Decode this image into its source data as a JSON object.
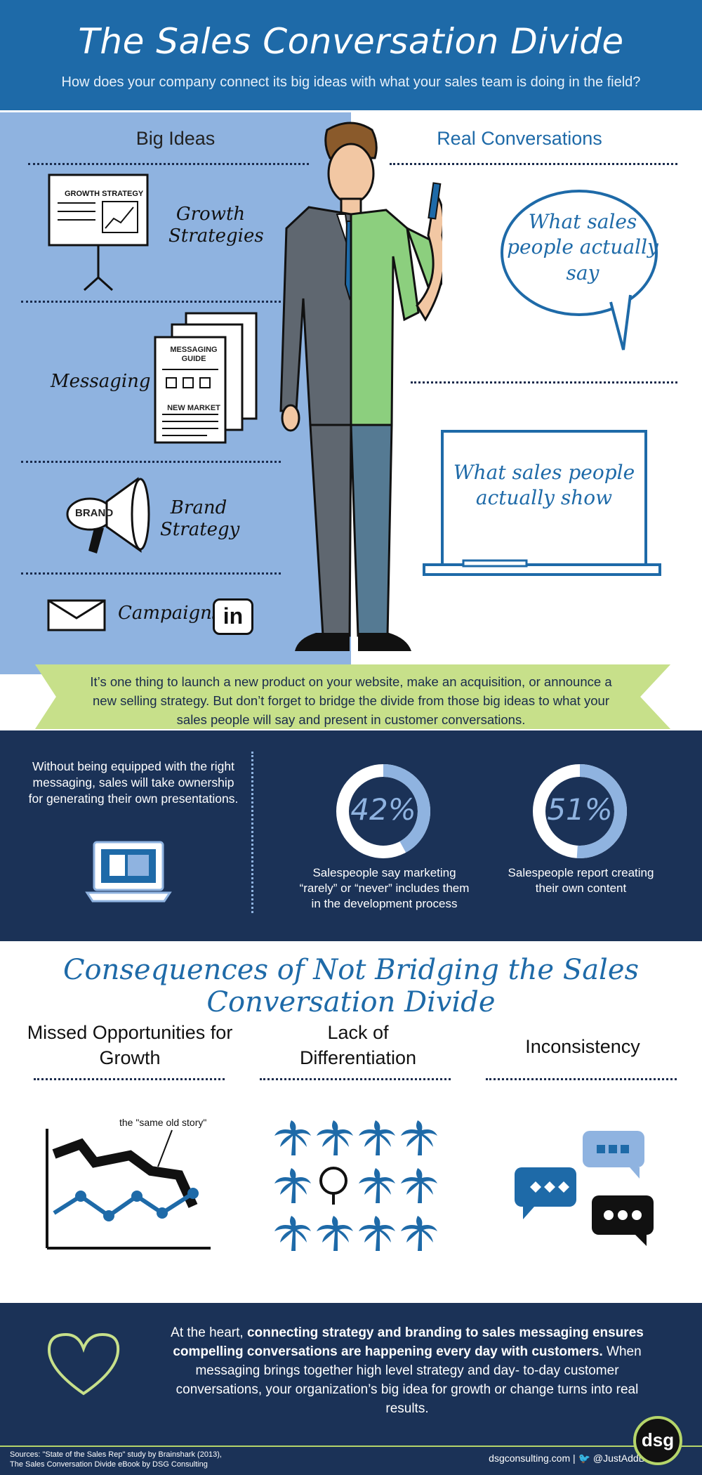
{
  "header": {
    "title": "The Sales Conversation Divide",
    "subtitle": "How does your company connect its big ideas with what your sales team is doing in the field?"
  },
  "big_ideas": {
    "heading": "Big Ideas",
    "easel_label": "GROWTH STRATEGY",
    "growth_label": "Growth Strategies",
    "messaging_label": "Messaging",
    "guide_line1": "MESSAGING",
    "guide_line2": "GUIDE",
    "guide_line3": "NEW MARKET",
    "brand_badge": "BRAND",
    "brand_label": "Brand Strategy",
    "campaigns_label": "Campaigns",
    "linkedin_badge": "in"
  },
  "real_conversations": {
    "heading": "Real Conversations",
    "say_text": "What sales people actually say",
    "show_text": "What sales people actually show"
  },
  "banner": {
    "text": "It’s one thing to launch a new product  on your website, make an acquisition, or announce a new selling strategy. But don’t forget to bridge the divide from those big ideas to what your sales people will say and present in customer conversations."
  },
  "stats": {
    "lead_text": "Without being equipped with the right messaging, sales will take ownership for generating their own presentations.",
    "items": [
      {
        "value": "42%",
        "fraction": 0.42,
        "caption": "Salespeople say marketing “rarely” or “never” includes them in the development process"
      },
      {
        "value": "51%",
        "fraction": 0.51,
        "caption": "Salespeople report creating their own content"
      }
    ]
  },
  "consequences": {
    "title": "Consequences of Not Bridging the Sales Conversation Divide",
    "items": [
      {
        "heading": "Missed Opportunities for Growth"
      },
      {
        "heading": "Lack of Differentiation"
      },
      {
        "heading": "Inconsistency"
      }
    ],
    "chart_note": "the \"same old story\""
  },
  "closing": {
    "text_1": "At the heart, ",
    "text_bold": "connecting strategy and branding to sales messaging ensures compelling conversations are happening every day with customers.",
    "text_2": " When messaging brings together high level strategy and day- to-day customer conversations, your organization’s big idea for growth or change turns into real results."
  },
  "footer": {
    "sources_line1": "Sources: \"State of the Sales Rep\" study by Brainshark (2013),",
    "sources_line2": "The Sales Conversation Divide eBook by DSG Consulting",
    "website": "dsgconsulting.com",
    "twitter": "@JustAddDSG",
    "logo": "dsg"
  },
  "colors": {
    "brand_blue": "#1e6aa8",
    "light_blue": "#8fb3e0",
    "navy": "#1b3257",
    "lime": "#c7e08a"
  }
}
